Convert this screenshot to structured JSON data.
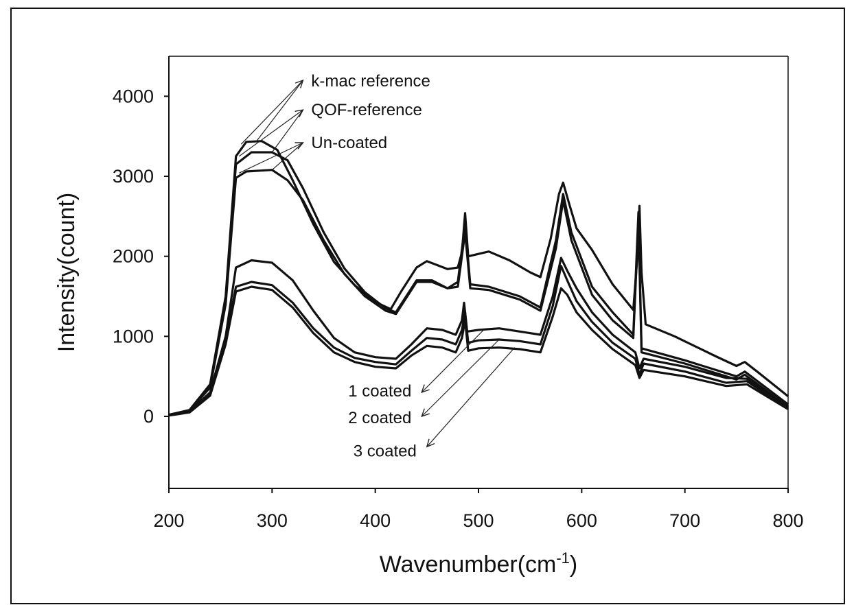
{
  "chart_data": {
    "type": "line",
    "xlabel": "Wavenumber(cm",
    "xlabel_sup": "-1",
    "xlabel_end": ")",
    "ylabel": "Intensity(count)",
    "xlim": [
      200,
      800
    ],
    "ylim": [
      -900,
      4500
    ],
    "xticks": [
      "200",
      "300",
      "400",
      "500",
      "600",
      "700",
      "800"
    ],
    "yticks": [
      "0",
      "1000",
      "2000",
      "3000",
      "4000"
    ],
    "grid": false,
    "annotations": [
      "k-mac reference",
      "QOF-reference",
      "Un-coated",
      "1 coated",
      "2 coated",
      "3 coated"
    ],
    "series": [
      {
        "name": "k-mac reference",
        "points": [
          [
            200,
            20
          ],
          [
            220,
            80
          ],
          [
            240,
            400
          ],
          [
            255,
            1500
          ],
          [
            265,
            3250
          ],
          [
            275,
            3430
          ],
          [
            290,
            3440
          ],
          [
            305,
            3330
          ],
          [
            320,
            2950
          ],
          [
            340,
            2400
          ],
          [
            360,
            1930
          ],
          [
            380,
            1640
          ],
          [
            400,
            1430
          ],
          [
            415,
            1340
          ],
          [
            425,
            1560
          ],
          [
            440,
            1860
          ],
          [
            450,
            1940
          ],
          [
            460,
            1890
          ],
          [
            470,
            1840
          ],
          [
            480,
            1860
          ],
          [
            484,
            2050
          ],
          [
            487,
            2540
          ],
          [
            490,
            2000
          ],
          [
            500,
            2030
          ],
          [
            510,
            2060
          ],
          [
            530,
            1950
          ],
          [
            550,
            1800
          ],
          [
            560,
            1740
          ],
          [
            570,
            2220
          ],
          [
            578,
            2780
          ],
          [
            582,
            2920
          ],
          [
            588,
            2650
          ],
          [
            595,
            2350
          ],
          [
            610,
            2080
          ],
          [
            630,
            1650
          ],
          [
            650,
            1330
          ],
          [
            654,
            2000
          ],
          [
            656,
            2630
          ],
          [
            658,
            1800
          ],
          [
            662,
            1150
          ],
          [
            690,
            1000
          ],
          [
            730,
            750
          ],
          [
            750,
            630
          ],
          [
            758,
            680
          ],
          [
            770,
            560
          ],
          [
            800,
            250
          ]
        ]
      },
      {
        "name": "QOF-reference",
        "points": [
          [
            200,
            20
          ],
          [
            220,
            75
          ],
          [
            240,
            380
          ],
          [
            255,
            1450
          ],
          [
            265,
            3150
          ],
          [
            280,
            3300
          ],
          [
            300,
            3300
          ],
          [
            315,
            3200
          ],
          [
            330,
            2850
          ],
          [
            350,
            2300
          ],
          [
            370,
            1850
          ],
          [
            390,
            1550
          ],
          [
            410,
            1350
          ],
          [
            420,
            1300
          ],
          [
            440,
            1700
          ],
          [
            455,
            1700
          ],
          [
            470,
            1600
          ],
          [
            480,
            1680
          ],
          [
            487,
            2400
          ],
          [
            492,
            1650
          ],
          [
            510,
            1620
          ],
          [
            540,
            1500
          ],
          [
            560,
            1360
          ],
          [
            575,
            2200
          ],
          [
            582,
            2780
          ],
          [
            590,
            2300
          ],
          [
            610,
            1620
          ],
          [
            630,
            1300
          ],
          [
            650,
            1020
          ],
          [
            655,
            2550
          ],
          [
            658,
            850
          ],
          [
            700,
            700
          ],
          [
            750,
            500
          ],
          [
            758,
            560
          ],
          [
            800,
            150
          ]
        ]
      },
      {
        "name": "Un-coated",
        "points": [
          [
            200,
            20
          ],
          [
            220,
            70
          ],
          [
            240,
            360
          ],
          [
            255,
            1400
          ],
          [
            265,
            2980
          ],
          [
            275,
            3060
          ],
          [
            300,
            3080
          ],
          [
            315,
            2950
          ],
          [
            330,
            2700
          ],
          [
            350,
            2200
          ],
          [
            370,
            1780
          ],
          [
            390,
            1500
          ],
          [
            410,
            1320
          ],
          [
            420,
            1280
          ],
          [
            440,
            1680
          ],
          [
            455,
            1680
          ],
          [
            470,
            1600
          ],
          [
            480,
            1620
          ],
          [
            487,
            2300
          ],
          [
            492,
            1600
          ],
          [
            510,
            1580
          ],
          [
            540,
            1460
          ],
          [
            560,
            1320
          ],
          [
            575,
            2100
          ],
          [
            582,
            2700
          ],
          [
            590,
            2200
          ],
          [
            610,
            1520
          ],
          [
            630,
            1200
          ],
          [
            650,
            980
          ],
          [
            655,
            2450
          ],
          [
            658,
            800
          ],
          [
            700,
            660
          ],
          [
            750,
            460
          ],
          [
            758,
            520
          ],
          [
            800,
            120
          ]
        ]
      },
      {
        "name": "1 coated",
        "points": [
          [
            200,
            15
          ],
          [
            220,
            60
          ],
          [
            240,
            300
          ],
          [
            255,
            1000
          ],
          [
            265,
            1860
          ],
          [
            280,
            1950
          ],
          [
            300,
            1920
          ],
          [
            320,
            1700
          ],
          [
            340,
            1320
          ],
          [
            360,
            980
          ],
          [
            380,
            800
          ],
          [
            400,
            740
          ],
          [
            420,
            720
          ],
          [
            435,
            900
          ],
          [
            450,
            1100
          ],
          [
            465,
            1080
          ],
          [
            478,
            1020
          ],
          [
            484,
            1200
          ],
          [
            486,
            1420
          ],
          [
            489,
            1060
          ],
          [
            500,
            1080
          ],
          [
            520,
            1100
          ],
          [
            540,
            1060
          ],
          [
            560,
            1020
          ],
          [
            572,
            1500
          ],
          [
            580,
            1980
          ],
          [
            586,
            1820
          ],
          [
            595,
            1600
          ],
          [
            610,
            1300
          ],
          [
            630,
            1020
          ],
          [
            652,
            800
          ],
          [
            656,
            600
          ],
          [
            660,
            720
          ],
          [
            700,
            620
          ],
          [
            740,
            480
          ],
          [
            760,
            470
          ],
          [
            800,
            110
          ]
        ]
      },
      {
        "name": "2 coated",
        "points": [
          [
            200,
            12
          ],
          [
            220,
            55
          ],
          [
            240,
            280
          ],
          [
            255,
            960
          ],
          [
            265,
            1620
          ],
          [
            280,
            1680
          ],
          [
            300,
            1640
          ],
          [
            320,
            1420
          ],
          [
            340,
            1100
          ],
          [
            360,
            860
          ],
          [
            380,
            730
          ],
          [
            400,
            680
          ],
          [
            420,
            650
          ],
          [
            435,
            820
          ],
          [
            450,
            980
          ],
          [
            465,
            960
          ],
          [
            478,
            900
          ],
          [
            484,
            1080
          ],
          [
            487,
            1300
          ],
          [
            490,
            920
          ],
          [
            500,
            950
          ],
          [
            520,
            960
          ],
          [
            540,
            940
          ],
          [
            560,
            900
          ],
          [
            572,
            1380
          ],
          [
            580,
            1880
          ],
          [
            586,
            1700
          ],
          [
            595,
            1440
          ],
          [
            610,
            1180
          ],
          [
            630,
            920
          ],
          [
            652,
            720
          ],
          [
            656,
            520
          ],
          [
            660,
            660
          ],
          [
            700,
            560
          ],
          [
            740,
            420
          ],
          [
            760,
            440
          ],
          [
            800,
            100
          ]
        ]
      },
      {
        "name": "3 coated",
        "points": [
          [
            200,
            10
          ],
          [
            220,
            50
          ],
          [
            240,
            260
          ],
          [
            255,
            900
          ],
          [
            265,
            1560
          ],
          [
            280,
            1620
          ],
          [
            300,
            1580
          ],
          [
            320,
            1360
          ],
          [
            340,
            1040
          ],
          [
            360,
            800
          ],
          [
            380,
            680
          ],
          [
            400,
            620
          ],
          [
            420,
            600
          ],
          [
            435,
            760
          ],
          [
            450,
            880
          ],
          [
            465,
            860
          ],
          [
            478,
            800
          ],
          [
            484,
            980
          ],
          [
            487,
            1200
          ],
          [
            490,
            820
          ],
          [
            500,
            850
          ],
          [
            520,
            860
          ],
          [
            540,
            840
          ],
          [
            560,
            800
          ],
          [
            572,
            1250
          ],
          [
            580,
            1600
          ],
          [
            586,
            1520
          ],
          [
            595,
            1300
          ],
          [
            610,
            1080
          ],
          [
            630,
            840
          ],
          [
            652,
            640
          ],
          [
            656,
            480
          ],
          [
            660,
            580
          ],
          [
            700,
            500
          ],
          [
            740,
            380
          ],
          [
            760,
            400
          ],
          [
            800,
            90
          ]
        ]
      }
    ],
    "annotation_arrows": [
      {
        "label": "k-mac reference",
        "tail": [
          330,
          4200
        ],
        "heads": [
          [
            270,
            3400
          ],
          [
            285,
            3440
          ]
        ]
      },
      {
        "label": "QOF-reference",
        "tail": [
          330,
          3830
        ],
        "heads": [
          [
            268,
            3250
          ],
          [
            300,
            3300
          ]
        ]
      },
      {
        "label": "Un-coated",
        "tail": [
          330,
          3420
        ],
        "heads": [
          [
            268,
            3040
          ],
          [
            300,
            3080
          ]
        ]
      },
      {
        "label": "1 coated",
        "tail": [
          445,
          300
        ],
        "heads": [
          [
            505,
            1080
          ]
        ]
      },
      {
        "label": "2 coated",
        "tail": [
          445,
          0
        ],
        "heads": [
          [
            520,
            960
          ]
        ]
      },
      {
        "label": "3 coated",
        "tail": [
          450,
          -380
        ],
        "heads": [
          [
            535,
            860
          ]
        ]
      }
    ]
  }
}
